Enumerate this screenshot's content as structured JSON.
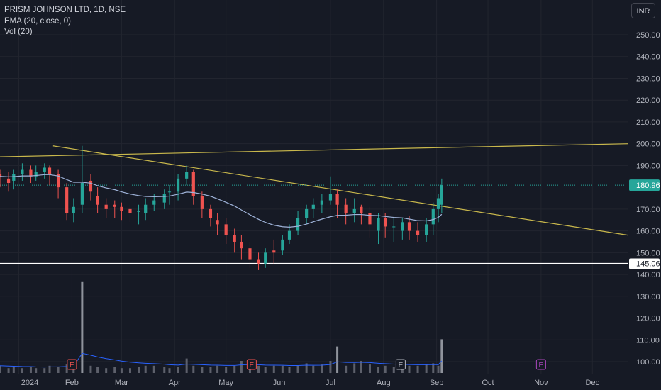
{
  "legend": {
    "title": "PRISM JOHNSON LTD, 1D, NSE",
    "ema": "EMA (20, close, 0)",
    "vol": "Vol (20)"
  },
  "currency_button": "INR",
  "colors": {
    "background": "#161a25",
    "up": "#26a69a",
    "down": "#ef5350",
    "ema": "#9fb3d9",
    "trendline": "#c9b84c",
    "support": "#ffffff",
    "volume": "#5d606b",
    "volume_spike": "#8f939c",
    "volume_ma": "#2962ff",
    "earnings_red": "#ef5350",
    "earnings_gray": "#b2b5be",
    "earnings_purple": "#ab47bc"
  },
  "chart_data": {
    "type": "candlestick",
    "symbol": "PRISM JOHNSON LTD",
    "interval": "1D",
    "exchange": "NSE",
    "indicators": [
      "EMA (20, close, 0)",
      "Vol (20)"
    ],
    "y_ticks": [
      250,
      240,
      230,
      220,
      210,
      200,
      190,
      170,
      160,
      150,
      140,
      130,
      120,
      110,
      100
    ],
    "y_tick_labels": [
      "250.00",
      "240.00",
      "230.00",
      "220.00",
      "210.00",
      "200.00",
      "190.00",
      "170.00",
      "160.00",
      "150.00",
      "140.00",
      "130.00",
      "120.00",
      "110.00",
      "100.00"
    ],
    "ylim": [
      96,
      255
    ],
    "x_labels": [
      "2024",
      "Feb",
      "Mar",
      "Apr",
      "May",
      "Jun",
      "Jul",
      "Aug",
      "Sep",
      "Oct",
      "Nov",
      "Dec"
    ],
    "x_label_dates": [
      "2024-01-01",
      "2024-02-01",
      "2024-03-01",
      "2024-04-01",
      "2024-05-01",
      "2024-06-01",
      "2024-07-01",
      "2024-08-01",
      "2024-09-01",
      "2024-10-01",
      "2024-11-01",
      "2024-12-01"
    ],
    "x_range": [
      "2023-12-21",
      "2024-12-22"
    ],
    "last_price": 180.96,
    "last_price_label": "180.96",
    "support_level": 145.06,
    "support_label": "145.06",
    "trendlines": [
      {
        "from": {
          "date": "2024-01-21",
          "price": 199
        },
        "to": {
          "date": "2024-12-22",
          "price": 158
        }
      },
      {
        "from": {
          "date": "2023-12-21",
          "price": 194
        },
        "to": {
          "date": "2024-12-22",
          "price": 200
        }
      }
    ],
    "earnings_markers": [
      {
        "date": "2024-02-01",
        "label": "E",
        "kind": "red"
      },
      {
        "date": "2024-05-16",
        "label": "E",
        "kind": "red"
      },
      {
        "date": "2024-08-11",
        "label": "E",
        "kind": "gray"
      },
      {
        "date": "2024-11-01",
        "label": "E",
        "kind": "purple"
      }
    ],
    "series": [
      {
        "name": "PRISM JOHNSON LTD",
        "dates": [
          "2023-12-21",
          "2023-12-26",
          "2023-12-29",
          "2024-01-03",
          "2024-01-08",
          "2024-01-11",
          "2024-01-16",
          "2024-01-19",
          "2024-01-24",
          "2024-01-29",
          "2024-02-02",
          "2024-02-07",
          "2024-02-12",
          "2024-02-16",
          "2024-02-21",
          "2024-02-26",
          "2024-03-01",
          "2024-03-06",
          "2024-03-11",
          "2024-03-15",
          "2024-03-20",
          "2024-03-26",
          "2024-03-29",
          "2024-04-03",
          "2024-04-08",
          "2024-04-12",
          "2024-04-17",
          "2024-04-22",
          "2024-04-26",
          "2024-05-01",
          "2024-05-06",
          "2024-05-10",
          "2024-05-15",
          "2024-05-20",
          "2024-05-24",
          "2024-05-29",
          "2024-06-03",
          "2024-06-07",
          "2024-06-12",
          "2024-06-17",
          "2024-06-21",
          "2024-06-26",
          "2024-07-01",
          "2024-07-05",
          "2024-07-10",
          "2024-07-15",
          "2024-07-19",
          "2024-07-24",
          "2024-07-29",
          "2024-08-02",
          "2024-08-07",
          "2024-08-12",
          "2024-08-16",
          "2024-08-21",
          "2024-08-26",
          "2024-08-30",
          "2024-09-02",
          "2024-09-04"
        ],
        "open": [
          186,
          184,
          183,
          186,
          188,
          185,
          187,
          189,
          186,
          180,
          168,
          172,
          183,
          176,
          172,
          172,
          171,
          170,
          169,
          168,
          172,
          173,
          178,
          178,
          184,
          187,
          176,
          170,
          165,
          163,
          158,
          155,
          152,
          147,
          145,
          151,
          151,
          156,
          160,
          166,
          170,
          172,
          174,
          177,
          172,
          168,
          171,
          168,
          160,
          166,
          162,
          160,
          164,
          160,
          158,
          163,
          170,
          172
        ],
        "close": [
          185,
          182,
          186,
          188,
          185,
          187,
          189,
          186,
          180,
          168,
          171,
          182,
          178,
          172,
          170,
          171,
          169,
          168,
          169,
          172,
          174,
          177,
          178,
          184,
          187,
          176,
          170,
          166,
          163,
          158,
          155,
          152,
          147,
          145,
          150,
          150,
          156,
          160,
          166,
          170,
          172,
          174,
          177,
          172,
          168,
          170,
          168,
          163,
          166,
          162,
          162,
          164,
          160,
          158,
          163,
          170,
          175,
          181
        ],
        "high": [
          188,
          187,
          188,
          191,
          190,
          190,
          191,
          190,
          188,
          182,
          175,
          199,
          186,
          180,
          175,
          174,
          173,
          172,
          172,
          175,
          177,
          179,
          181,
          186,
          190,
          188,
          178,
          172,
          168,
          166,
          161,
          158,
          155,
          150,
          152,
          156,
          158,
          163,
          169,
          172,
          175,
          177,
          185,
          179,
          175,
          175,
          172,
          171,
          168,
          168,
          166,
          166,
          167,
          164,
          166,
          173,
          177,
          184
        ],
        "low": [
          180,
          178,
          179,
          183,
          182,
          183,
          184,
          181,
          175,
          165,
          164,
          168,
          174,
          168,
          166,
          166,
          165,
          164,
          163,
          165,
          169,
          170,
          172,
          174,
          181,
          172,
          166,
          162,
          158,
          154,
          150,
          147,
          143,
          142,
          143,
          145,
          149,
          154,
          158,
          163,
          166,
          168,
          172,
          166,
          163,
          164,
          163,
          157,
          154,
          157,
          155,
          156,
          156,
          155,
          155,
          158,
          164,
          168
        ],
        "ema": [
          185,
          184.8,
          184.9,
          185.2,
          185.2,
          185.4,
          185.8,
          185.8,
          185.2,
          183.5,
          182.3,
          182.3,
          181.9,
          180.7,
          179.7,
          178.9,
          177.9,
          176.9,
          176.2,
          175.8,
          175.7,
          175.8,
          176.0,
          176.8,
          177.8,
          177.6,
          176.9,
          175.9,
          174.7,
          173.1,
          171.4,
          169.6,
          167.4,
          165.3,
          163.9,
          162.6,
          161.9,
          161.7,
          162.1,
          163.1,
          164.2,
          165.4,
          166.5,
          167.1,
          167.2,
          167.5,
          167.5,
          167.1,
          167.0,
          166.6,
          166.2,
          166.0,
          165.4,
          164.7,
          164.6,
          165.2,
          166.2,
          167.6
        ],
        "volume": [
          3,
          2,
          2.5,
          2,
          2.5,
          2,
          2,
          3,
          2.5,
          3.5,
          4,
          38,
          3,
          2.5,
          2,
          2.5,
          2,
          2,
          2.5,
          3,
          3,
          2.5,
          2,
          2.5,
          6,
          3,
          2.5,
          2.5,
          3,
          2.5,
          3,
          5,
          4,
          3,
          2.5,
          3,
          3,
          2.5,
          3,
          4,
          3,
          3.5,
          5,
          11,
          3,
          4,
          5,
          3.5,
          2.5,
          3,
          2.5,
          3,
          3,
          3,
          3.5,
          4,
          3,
          14
        ]
      }
    ]
  }
}
